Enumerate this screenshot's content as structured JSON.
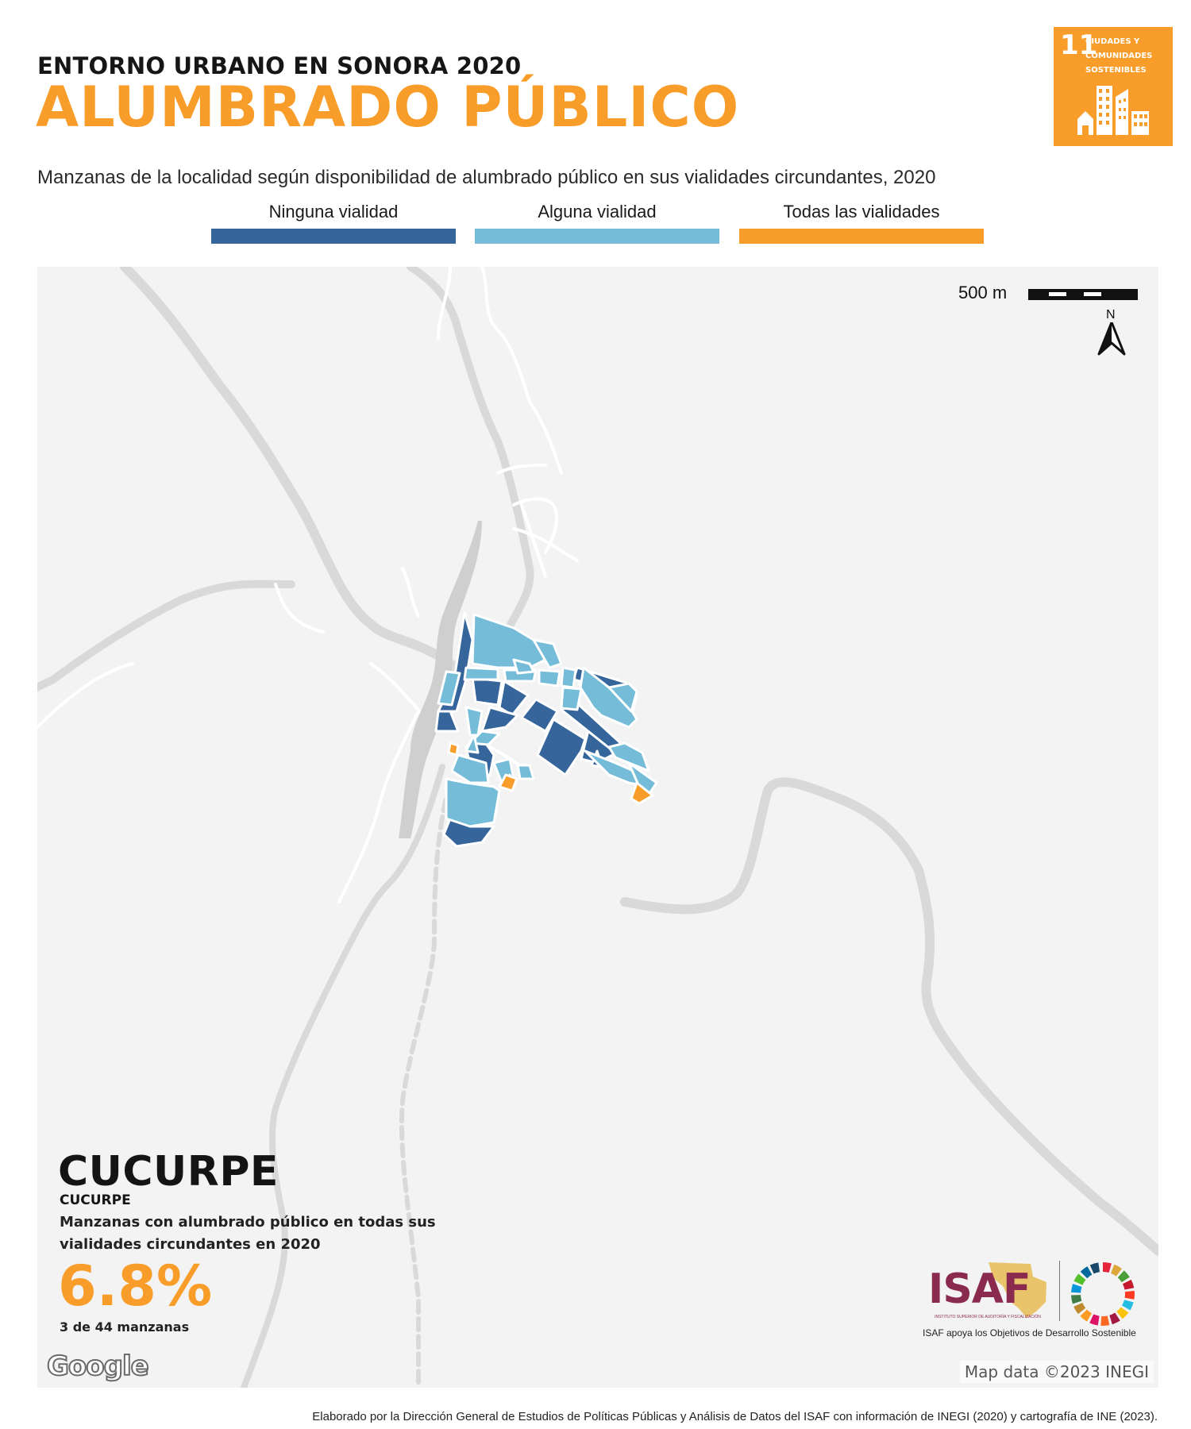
{
  "header": {
    "kicker": "ENTORNO URBANO EN SONORA 2020",
    "title": "ALUMBRADO PÚBLICO",
    "subtitle": "Manzanas de la localidad según disponibilidad de alumbrado público en sus vialidades circundantes, 2020"
  },
  "sdg_badge": {
    "number": "11",
    "text": "CIUDADES Y COMUNIDADES SOSTENIBLES",
    "color": "#f99d2a",
    "icon": "city-buildings-icon"
  },
  "legend": [
    {
      "label": "Ninguna vialidad",
      "color": "#35659a"
    },
    {
      "label": "Alguna vialidad",
      "color": "#74bcd8"
    },
    {
      "label": "Todas las vialidades",
      "color": "#f99d2a"
    }
  ],
  "map": {
    "scale_label": "500 m",
    "north_label": "N",
    "provider_logo": "Google",
    "credit": "Map data ©2023 INEGI",
    "background_color": "#f3f3f3",
    "road_color": "#dadada"
  },
  "locality": {
    "name": "CUCURPE",
    "municipality": "CUCURPE",
    "stat_description": "Manzanas con alumbrado público en todas sus vialidades circundantes en 2020",
    "stat_value": "6.8%",
    "stat_count": "3 de 44 manzanas",
    "blocks_total": 44,
    "blocks_all_lit": 3
  },
  "isaf": {
    "logo_text": "ISAF",
    "logo_tagline": "INSTITUTO SUPERIOR DE AUDITORÍA Y FISCALIZACIÓN",
    "caption": "ISAF apoya los Objetivos de Desarrollo Sostenible",
    "color": "#8a2a4e"
  },
  "footer": "Elaborado por la Dirección General de Estudios de Políticas Públicas y Análisis de Datos del ISAF con información de INEGI (2020) y cartografía de INE (2023)."
}
